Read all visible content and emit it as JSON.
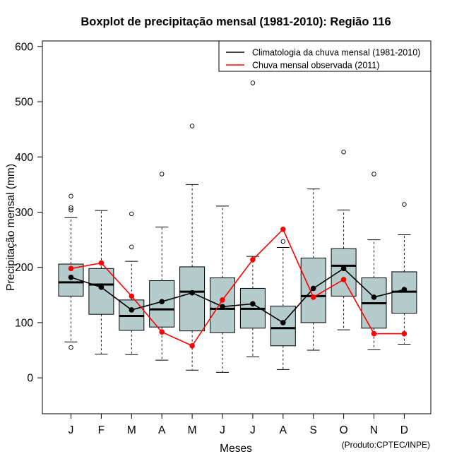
{
  "chart_data": {
    "type": "boxplot",
    "title": "Boxplot de precipitação mensal (1981-2010): Região 116",
    "xlabel": "Meses",
    "ylabel": "Precipitação mensal (mm)",
    "categories": [
      "J",
      "F",
      "M",
      "A",
      "M",
      "J",
      "J",
      "A",
      "S",
      "O",
      "N",
      "D"
    ],
    "ylim": [
      -65,
      610
    ],
    "yticks": [
      0,
      100,
      200,
      300,
      400,
      500,
      600
    ],
    "boxes": [
      {
        "whisker_low": 65,
        "q1": 148,
        "median": 173,
        "q3": 206,
        "whisker_high": 290,
        "outliers": [
          55,
          304,
          308,
          329
        ]
      },
      {
        "whisker_low": 43,
        "q1": 115,
        "median": 169,
        "q3": 198,
        "whisker_high": 303,
        "outliers": []
      },
      {
        "whisker_low": 42,
        "q1": 86,
        "median": 112,
        "q3": 141,
        "whisker_high": 211,
        "outliers": [
          237,
          297
        ]
      },
      {
        "whisker_low": 32,
        "q1": 92,
        "median": 124,
        "q3": 176,
        "whisker_high": 273,
        "outliers": [
          369
        ]
      },
      {
        "whisker_low": 14,
        "q1": 85,
        "median": 156,
        "q3": 201,
        "whisker_high": 350,
        "outliers": [
          456
        ]
      },
      {
        "whisker_low": 10,
        "q1": 82,
        "median": 125,
        "q3": 181,
        "whisker_high": 311,
        "outliers": []
      },
      {
        "whisker_low": 38,
        "q1": 90,
        "median": 125,
        "q3": 162,
        "whisker_high": 220,
        "outliers": [
          534
        ]
      },
      {
        "whisker_low": 15,
        "q1": 58,
        "median": 90,
        "q3": 130,
        "whisker_high": 236,
        "outliers": [
          247
        ]
      },
      {
        "whisker_low": 50,
        "q1": 100,
        "median": 148,
        "q3": 217,
        "whisker_high": 342,
        "outliers": []
      },
      {
        "whisker_low": 87,
        "q1": 148,
        "median": 203,
        "q3": 234,
        "whisker_high": 304,
        "outliers": [
          409
        ]
      },
      {
        "whisker_low": 51,
        "q1": 90,
        "median": 135,
        "q3": 181,
        "whisker_high": 250,
        "outliers": [
          369
        ]
      },
      {
        "whisker_low": 61,
        "q1": 117,
        "median": 156,
        "q3": 192,
        "whisker_high": 259,
        "outliers": [
          314
        ]
      }
    ],
    "series": [
      {
        "name": "Climatologia da chuva mensal (1981-2010)",
        "color": "#000000",
        "values": [
          182,
          164,
          123,
          138,
          154,
          129,
          134,
          100,
          162,
          198,
          146,
          160
        ]
      },
      {
        "name": "Chuva mensal observada (2011)",
        "color": "#ff0000",
        "values": [
          198,
          208,
          148,
          83,
          58,
          141,
          214,
          269,
          146,
          178,
          80,
          80
        ]
      }
    ],
    "legend": "top-right",
    "box_color": "#b5cccc",
    "credit": "(Produto:CPTEC/INPE)"
  }
}
